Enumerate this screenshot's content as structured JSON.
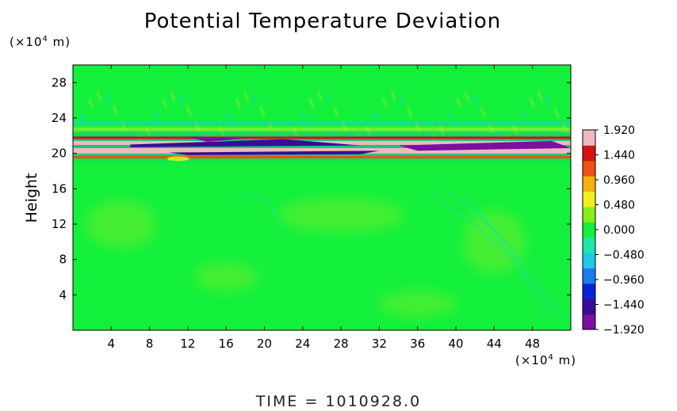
{
  "chart_data": {
    "type": "heatmap",
    "title": "Potential Temperature Deviation",
    "ylabel": "Height",
    "xlabel": "",
    "y_unit_prefix": "(×10",
    "x_unit_prefix": "(×10",
    "unit_exponent": "4",
    "unit_suffix": " m)",
    "xlim": [
      0,
      52
    ],
    "ylim": [
      0,
      30
    ],
    "x_ticks": [
      4,
      8,
      12,
      16,
      20,
      24,
      28,
      32,
      36,
      40,
      44,
      48
    ],
    "x_tick_labels": [
      "4",
      "8",
      "12",
      "16",
      "20",
      "24",
      "28",
      "32",
      "36",
      "40",
      "44",
      "48"
    ],
    "y_ticks": [
      4,
      8,
      12,
      16,
      20,
      24,
      28
    ],
    "y_tick_labels": [
      "4",
      "8",
      "12",
      "16",
      "20",
      "24",
      "28"
    ],
    "colorbar": {
      "range": [
        -1.92,
        1.92
      ],
      "tick_values": [
        1.92,
        1.44,
        0.96,
        0.48,
        0.0,
        -0.48,
        -0.96,
        -1.44,
        -1.92
      ],
      "tick_labels": [
        "1.920",
        "1.440",
        "0.960",
        "0.480",
        "0.000",
        "−0.480",
        "−0.960",
        "−1.440",
        "−1.920"
      ],
      "colors": [
        "#7a0fa0",
        "#3a0a9a",
        "#0b22d8",
        "#1b7df0",
        "#20c8e8",
        "#1de8a8",
        "#12f03c",
        "#8aec1a",
        "#f0f020",
        "#f8b010",
        "#f05010",
        "#d81010",
        "#f0b8c0"
      ]
    },
    "field_description_bands": [
      {
        "y": 21.2,
        "value": -1.9
      },
      {
        "y": 20.4,
        "value": 1.9
      }
    ],
    "background_value": 0.1
  },
  "footer": {
    "time_label": "TIME  =  1010928.0"
  }
}
